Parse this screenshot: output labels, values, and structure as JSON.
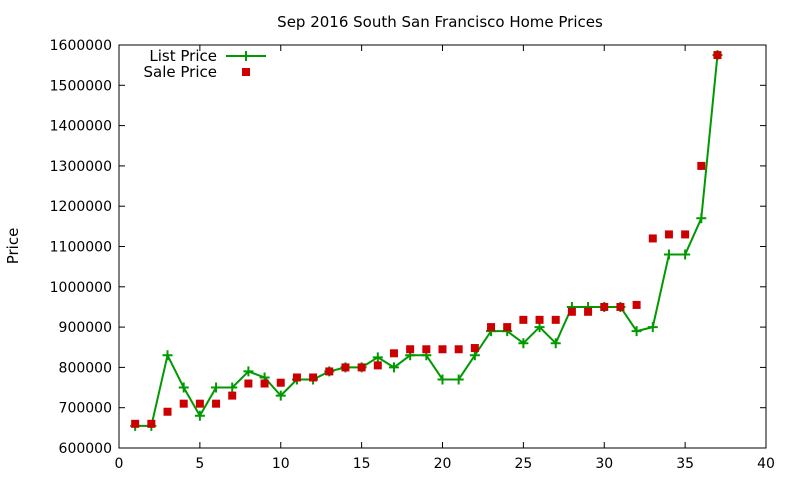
{
  "chart_data": {
    "type": "line",
    "title": "Sep 2016 South San Francisco Home Prices",
    "xlabel": "",
    "ylabel": "Price",
    "xlim": [
      0,
      40
    ],
    "ylim": [
      600000,
      1600000
    ],
    "x_ticks": [
      0,
      5,
      10,
      15,
      20,
      25,
      30,
      35,
      40
    ],
    "y_ticks": [
      600000,
      700000,
      800000,
      900000,
      1000000,
      1100000,
      1200000,
      1300000,
      1400000,
      1500000,
      1600000
    ],
    "grid": false,
    "legend_position": "top-left",
    "series": [
      {
        "name": "List Price",
        "style": "line+cross",
        "color": "#009900",
        "points": [
          [
            1,
            655000
          ],
          [
            2,
            655000
          ],
          [
            3,
            830000
          ],
          [
            4,
            750000
          ],
          [
            5,
            680000
          ],
          [
            6,
            750000
          ],
          [
            7,
            750000
          ],
          [
            8,
            790000
          ],
          [
            9,
            775000
          ],
          [
            10,
            730000
          ],
          [
            11,
            770000
          ],
          [
            12,
            770000
          ],
          [
            13,
            790000
          ],
          [
            14,
            800000
          ],
          [
            15,
            800000
          ],
          [
            16,
            825000
          ],
          [
            17,
            800000
          ],
          [
            18,
            830000
          ],
          [
            19,
            830000
          ],
          [
            20,
            770000
          ],
          [
            21,
            770000
          ],
          [
            22,
            830000
          ],
          [
            23,
            890000
          ],
          [
            24,
            890000
          ],
          [
            25,
            860000
          ],
          [
            26,
            900000
          ],
          [
            27,
            860000
          ],
          [
            28,
            950000
          ],
          [
            29,
            950000
          ],
          [
            30,
            950000
          ],
          [
            31,
            950000
          ],
          [
            32,
            890000
          ],
          [
            33,
            900000
          ],
          [
            34,
            1080000
          ],
          [
            35,
            1080000
          ],
          [
            36,
            1170000
          ],
          [
            37,
            1575000
          ]
        ]
      },
      {
        "name": "Sale Price",
        "style": "square",
        "color": "#cc0000",
        "points": [
          [
            1,
            660000
          ],
          [
            2,
            660000
          ],
          [
            3,
            690000
          ],
          [
            4,
            710000
          ],
          [
            5,
            710000
          ],
          [
            6,
            710000
          ],
          [
            7,
            730000
          ],
          [
            8,
            760000
          ],
          [
            9,
            760000
          ],
          [
            10,
            762000
          ],
          [
            11,
            775000
          ],
          [
            12,
            775000
          ],
          [
            13,
            790000
          ],
          [
            14,
            800000
          ],
          [
            15,
            800000
          ],
          [
            16,
            805000
          ],
          [
            17,
            835000
          ],
          [
            18,
            845000
          ],
          [
            19,
            845000
          ],
          [
            20,
            845000
          ],
          [
            21,
            845000
          ],
          [
            22,
            848000
          ],
          [
            23,
            900000
          ],
          [
            24,
            900000
          ],
          [
            25,
            918000
          ],
          [
            26,
            918000
          ],
          [
            27,
            918000
          ],
          [
            28,
            938000
          ],
          [
            29,
            938000
          ],
          [
            30,
            950000
          ],
          [
            31,
            950000
          ],
          [
            32,
            955000
          ],
          [
            33,
            1120000
          ],
          [
            34,
            1130000
          ],
          [
            35,
            1130000
          ],
          [
            36,
            1300000
          ],
          [
            37,
            1575000
          ]
        ]
      }
    ]
  }
}
